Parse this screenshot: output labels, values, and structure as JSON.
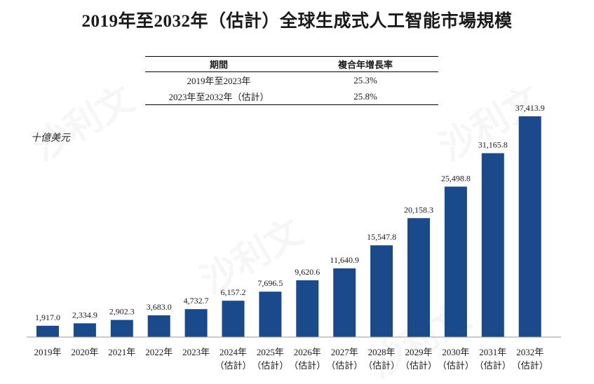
{
  "title": "2019年至2032年（估計）全球生成式人工智能市場規模",
  "cagr_table": {
    "headers": [
      "期間",
      "複合年增長率"
    ],
    "rows": [
      {
        "period": "2019年至2023年",
        "rate": "25.3%"
      },
      {
        "period": "2023年至2032年（估計）",
        "rate": "25.8%"
      }
    ]
  },
  "unit_label": "十億美元",
  "watermark": "沙利文",
  "colors": {
    "bar": "#1a4a8a"
  },
  "chart_data": {
    "type": "bar",
    "categories": [
      "2019年",
      "2020年",
      "2021年",
      "2022年",
      "2023年",
      "2024年",
      "2025年",
      "2026年",
      "2027年",
      "2028年",
      "2029年",
      "2030年",
      "2031年",
      "2032年"
    ],
    "category_sublabels": [
      "",
      "",
      "",
      "",
      "",
      "（估計）",
      "（估計）",
      "（估計）",
      "（估計）",
      "（估計）",
      "（估計）",
      "（估計）",
      "（估計）",
      "（估計）"
    ],
    "values": [
      1917.0,
      2334.9,
      2902.3,
      3683.0,
      4732.7,
      6157.2,
      7696.5,
      9620.6,
      11640.9,
      15547.8,
      20158.3,
      25498.8,
      31165.8,
      37413.9
    ],
    "value_labels": [
      "1,917.0",
      "2,334.9",
      "2,902.3",
      "3,683.0",
      "4,732.7",
      "6,157.2",
      "7,696.5",
      "9,620.6",
      "11,640.9",
      "15,547.8",
      "20,158.3",
      "25,498.8",
      "31,165.8",
      "37,413.9"
    ],
    "ylabel": "十億美元",
    "ylim": [
      0,
      37413.9
    ],
    "grid": false,
    "legend": "none"
  }
}
